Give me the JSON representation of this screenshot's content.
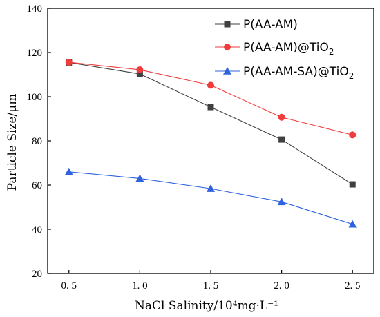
{
  "chart_data": {
    "type": "line",
    "xlabel": "NaCl Salinity/10⁴mg·L⁻¹",
    "ylabel": "Particle Size/μm",
    "x": [
      0.5,
      1.0,
      1.5,
      2.0,
      2.5
    ],
    "x_tick_labels": [
      "0. 5",
      "1. 0",
      "1. 5",
      "2. 0",
      "2. 5"
    ],
    "y_ticks": [
      20,
      40,
      60,
      80,
      100,
      120,
      140
    ],
    "xlim": [
      0.35,
      2.65
    ],
    "ylim": [
      20,
      140
    ],
    "grid": false,
    "legend_position": "top-right",
    "series": [
      {
        "name": "P(AA-AM)",
        "name_sub": "",
        "marker": "square",
        "color": "#404040",
        "values": [
          115.5,
          110.3,
          95.3,
          80.6,
          60.3
        ]
      },
      {
        "name": "P(AA-AM)@TiO",
        "name_sub": "2",
        "marker": "circle",
        "color": "#f03c3c",
        "values": [
          115.6,
          112.2,
          105.2,
          90.7,
          82.7
        ]
      },
      {
        "name": "P(AA-AM-SA)@TiO",
        "name_sub": "2",
        "marker": "triangle",
        "color": "#2f63de",
        "values": [
          66.0,
          63.0,
          58.4,
          52.4,
          42.3
        ]
      }
    ]
  }
}
